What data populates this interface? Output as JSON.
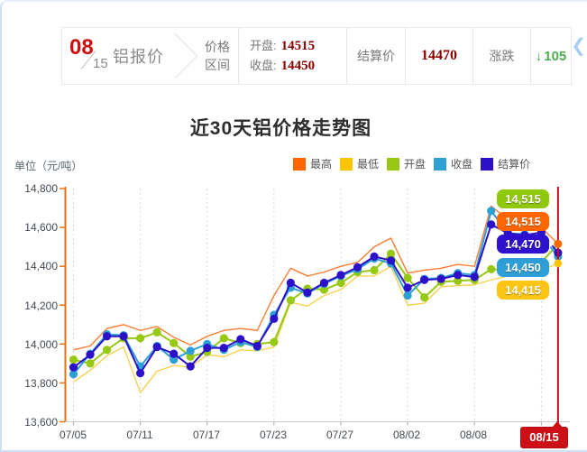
{
  "header": {
    "date_month": "08",
    "date_day": "15",
    "product": "铝报价",
    "range_label_line1": "价格",
    "range_label_line2": "区间",
    "open_label": "开盘:",
    "open_value": "14515",
    "close_label": "收盘:",
    "close_value": "14450",
    "settle_label": "结算价",
    "settle_value": "14470",
    "change_label": "涨跌",
    "change_arrow": "↓",
    "change_value": "105",
    "change_color": "#4caf50",
    "value_color": "#8b0000"
  },
  "side_toggle": {
    "glyph": "❮"
  },
  "chart_data": {
    "type": "line",
    "title": "近30天铝价格走势图",
    "ylabel": "单位（元/吨）",
    "ylim": [
      13600,
      14800
    ],
    "grid": true,
    "legend_position": "top-right",
    "y_ticks": [
      "14,800",
      "14,600",
      "14,400",
      "14,200",
      "14,000",
      "13,800",
      "13,600"
    ],
    "x_tick_labels": [
      "07/05",
      "07/11",
      "07/17",
      "07/23",
      "07/27",
      "08/02",
      "08/08"
    ],
    "x_tick_indices": [
      0,
      4,
      8,
      12,
      16,
      20,
      24
    ],
    "x_grid_indices": [
      0,
      4,
      8,
      12,
      16,
      20,
      24,
      28
    ],
    "point_count": 30,
    "current_marker": {
      "label": "08/15",
      "index": 29,
      "line_color": "#c30b1c"
    },
    "series": [
      {
        "name": "最高",
        "color": "#ff6600",
        "line_color": "#ff7c33",
        "markers": false,
        "values": [
          13970,
          13990,
          14080,
          14100,
          14070,
          14090,
          14035,
          13995,
          14040,
          14070,
          14080,
          14070,
          14250,
          14390,
          14350,
          14370,
          14400,
          14420,
          14500,
          14545,
          14365,
          14380,
          14390,
          14410,
          14400,
          14710,
          14640,
          14620,
          14600,
          14515
        ]
      },
      {
        "name": "最低",
        "color": "#fdc500",
        "line_color": "#f6d14f",
        "markers": false,
        "values": [
          13805,
          13865,
          13940,
          13985,
          13750,
          13860,
          13890,
          13880,
          13945,
          13935,
          13970,
          13965,
          13985,
          14215,
          14195,
          14250,
          14280,
          14350,
          14350,
          14400,
          14200,
          14210,
          14295,
          14300,
          14305,
          14330,
          14350,
          14360,
          14380,
          14415
        ]
      },
      {
        "name": "开盘",
        "color": "#97c813",
        "line_color": "#97c813",
        "markers": true,
        "values": [
          13920,
          13900,
          13970,
          14030,
          14030,
          14060,
          14005,
          13935,
          13960,
          14030,
          14005,
          14000,
          14010,
          14225,
          14285,
          14280,
          14315,
          14370,
          14380,
          14465,
          14340,
          14240,
          14320,
          14325,
          14330,
          14385,
          14380,
          14380,
          14420,
          14515
        ]
      },
      {
        "name": "收盘",
        "color": "#2e9fd4",
        "line_color": "#2e9fd4",
        "markers": true,
        "values": [
          13845,
          13950,
          14050,
          14045,
          13885,
          13990,
          13920,
          13965,
          14000,
          13970,
          14010,
          13985,
          14150,
          14290,
          14260,
          14310,
          14350,
          14385,
          14440,
          14415,
          14250,
          14335,
          14340,
          14365,
          14355,
          14685,
          14570,
          14565,
          14560,
          14450
        ]
      },
      {
        "name": "结算价",
        "color": "#2d11c8",
        "line_color": "#2d11c8",
        "markers": true,
        "values": [
          13880,
          13945,
          14040,
          14040,
          13850,
          13985,
          13950,
          13885,
          13980,
          13980,
          14025,
          13990,
          14130,
          14315,
          14265,
          14315,
          14355,
          14395,
          14450,
          14430,
          14290,
          14330,
          14335,
          14355,
          14345,
          14615,
          14570,
          14560,
          14575,
          14470
        ]
      }
    ],
    "end_labels": [
      {
        "text": "14,515",
        "color": "#90c80c"
      },
      {
        "text": "14,515",
        "color": "#ff6600"
      },
      {
        "text": "14,470",
        "color": "#2e11ce"
      },
      {
        "text": "14,450",
        "color": "#2d9fd6"
      },
      {
        "text": "14,415",
        "color": "#fdc513"
      }
    ]
  }
}
